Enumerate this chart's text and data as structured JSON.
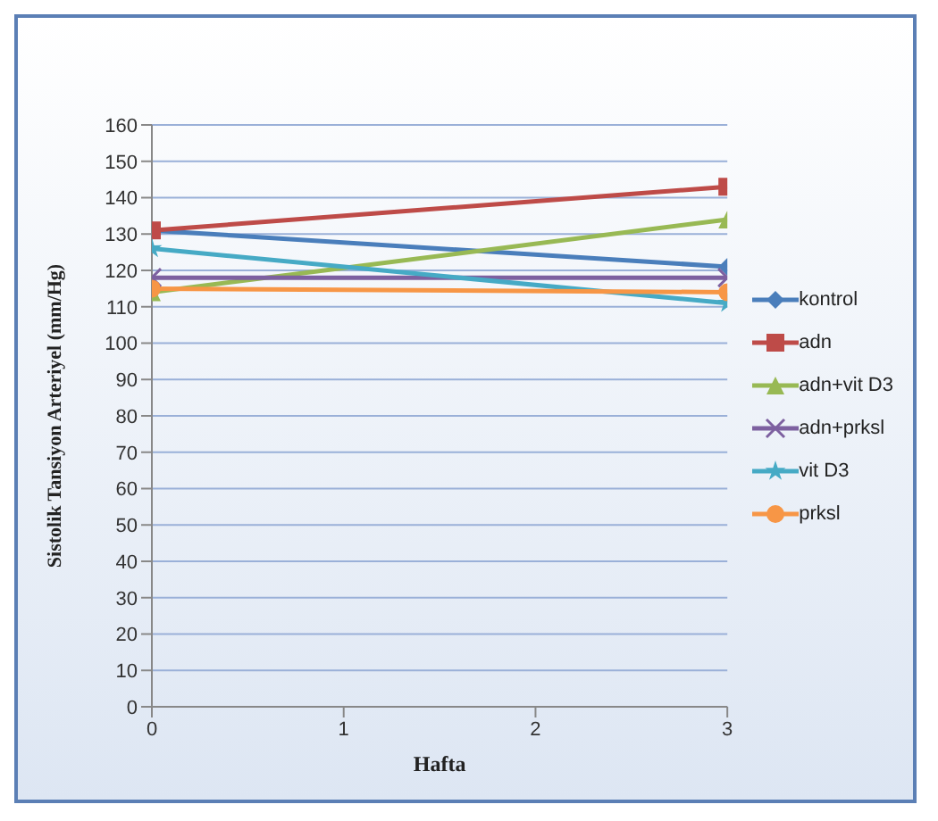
{
  "chart_data": {
    "type": "line",
    "xlabel": "Hafta",
    "ylabel": "Sistolik Tansiyon Arteriyel (mm/Hg)",
    "x": [
      0,
      3
    ],
    "xlim": [
      0,
      3
    ],
    "xticks": [
      0,
      1,
      2,
      3
    ],
    "ylim": [
      0,
      160
    ],
    "yticks": [
      0,
      10,
      20,
      30,
      40,
      50,
      60,
      70,
      80,
      90,
      100,
      110,
      120,
      130,
      140,
      150,
      160
    ],
    "grid": "y",
    "legend": "right",
    "series": [
      {
        "name": "kontrol",
        "color": "#4a7ebb",
        "marker": "diamond",
        "values": [
          131,
          121
        ]
      },
      {
        "name": "adn",
        "color": "#be4b48",
        "marker": "square",
        "values": [
          131,
          143
        ]
      },
      {
        "name": "adn+vit D3",
        "color": "#98b954",
        "marker": "triangle",
        "values": [
          114,
          134
        ]
      },
      {
        "name": "adn+prksl",
        "color": "#7d60a0",
        "marker": "cross",
        "values": [
          118,
          118
        ]
      },
      {
        "name": "vit D3",
        "color": "#46aac5",
        "marker": "star",
        "values": [
          126,
          111
        ]
      },
      {
        "name": "prksl",
        "color": "#f79646",
        "marker": "circle",
        "values": [
          115,
          114
        ]
      }
    ]
  }
}
